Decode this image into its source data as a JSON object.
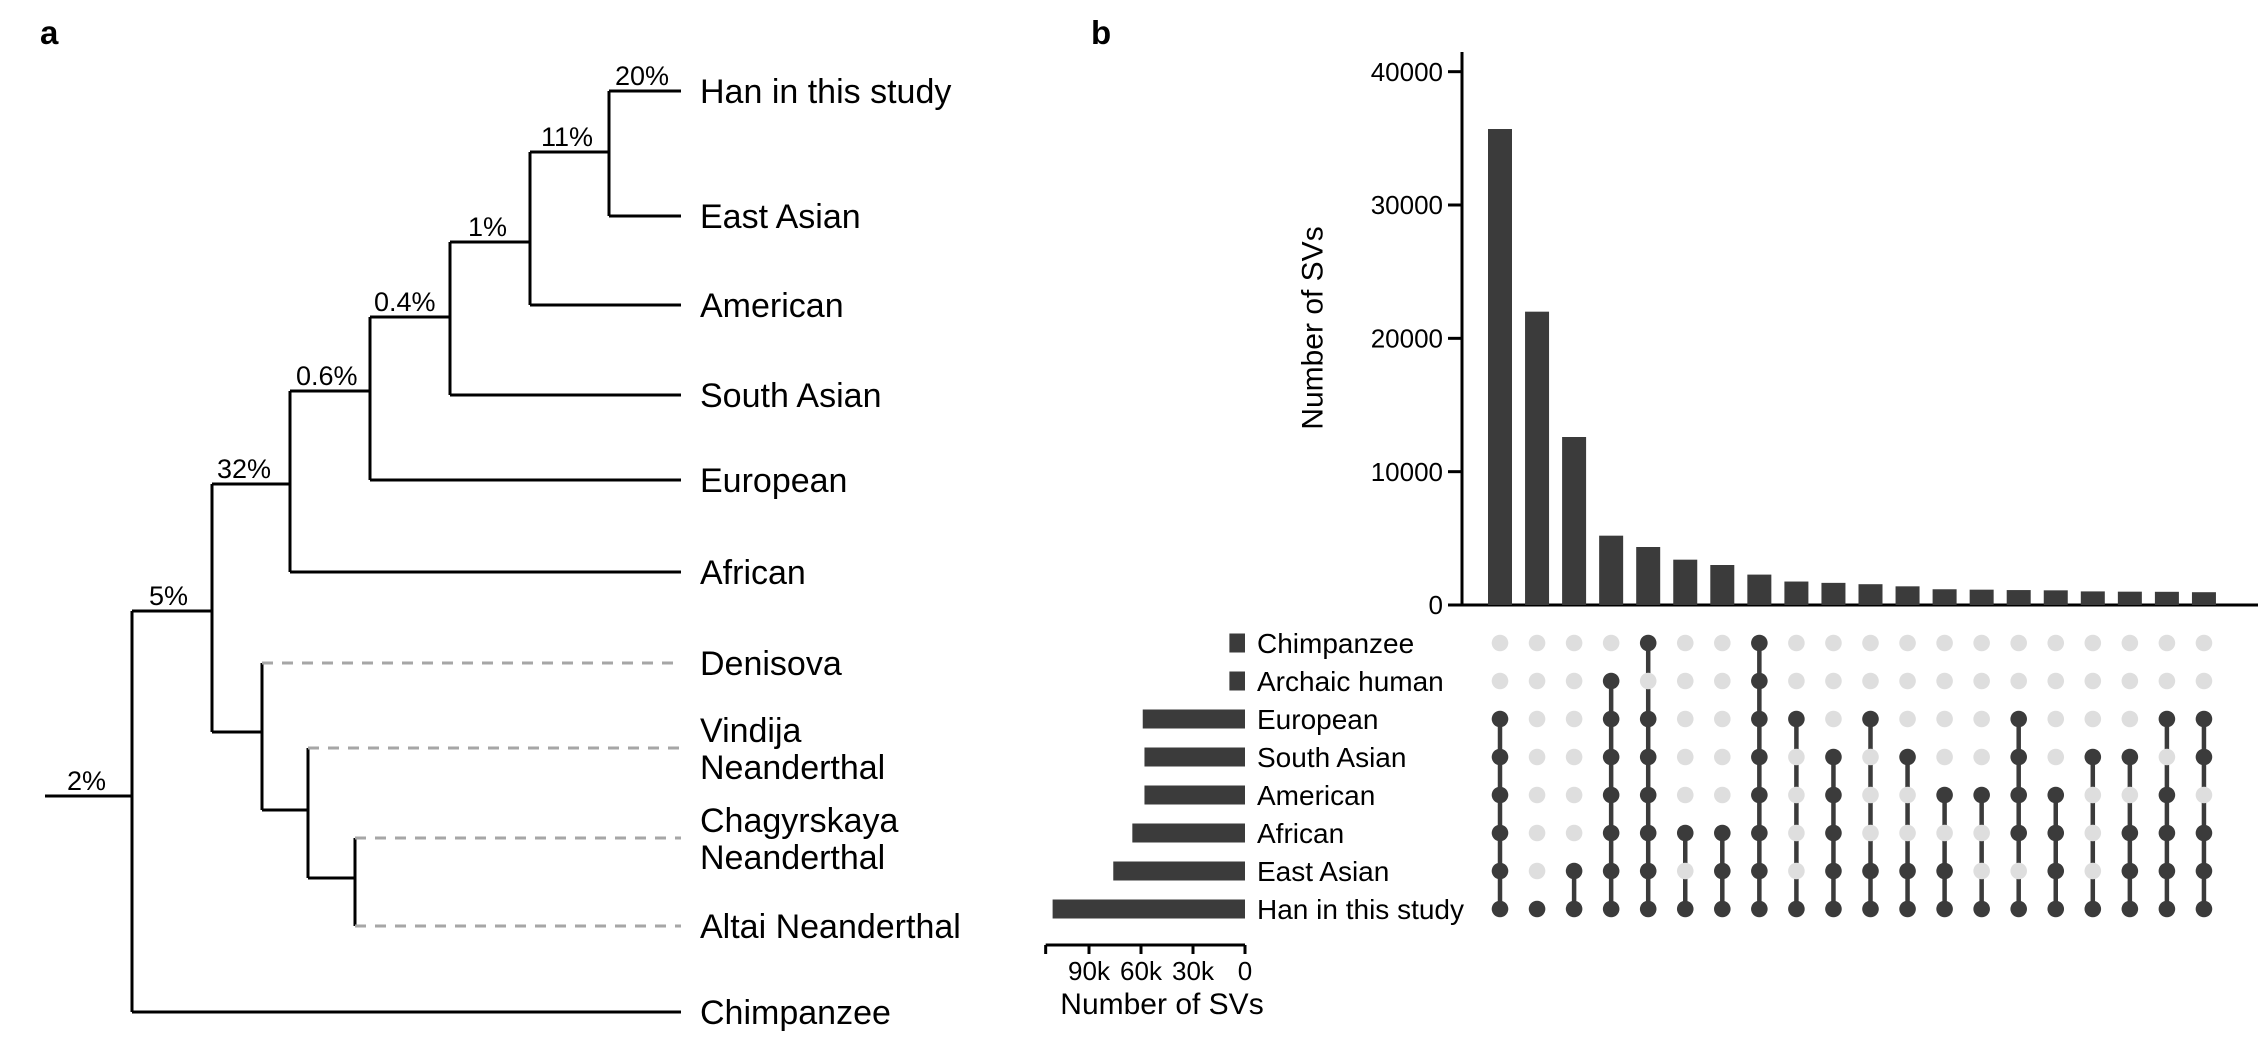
{
  "figure": {
    "background": "#ffffff"
  },
  "chart_data": [
    {
      "id": "panel-a-phylogenetic-tree",
      "type": "tree",
      "panel_label": "a",
      "tips": [
        {
          "name": "Han in this study",
          "lines": [
            "Han in this study"
          ],
          "branch_style": "solid"
        },
        {
          "name": "East Asian",
          "lines": [
            "East Asian"
          ],
          "branch_style": "solid"
        },
        {
          "name": "American",
          "lines": [
            "American"
          ],
          "branch_style": "solid"
        },
        {
          "name": "South Asian",
          "lines": [
            "South Asian"
          ],
          "branch_style": "solid"
        },
        {
          "name": "European",
          "lines": [
            "European"
          ],
          "branch_style": "solid"
        },
        {
          "name": "African",
          "lines": [
            "African"
          ],
          "branch_style": "solid"
        },
        {
          "name": "Denisova",
          "lines": [
            "Denisova"
          ],
          "branch_style": "dashed"
        },
        {
          "name": "Vindija Neanderthal",
          "lines": [
            "Vindija",
            "Neanderthal"
          ],
          "branch_style": "dashed"
        },
        {
          "name": "Chagyrskaya Neanderthal",
          "lines": [
            "Chagyrskaya",
            "Neanderthal"
          ],
          "branch_style": "dashed"
        },
        {
          "name": "Altai Neanderthal",
          "lines": [
            "Altai Neanderthal"
          ],
          "branch_style": "dashed"
        },
        {
          "name": "Chimpanzee",
          "lines": [
            "Chimpanzee"
          ],
          "branch_style": "solid"
        }
      ],
      "branch_percent_labels": [
        "20%",
        "11%",
        "1%",
        "0.4%",
        "0.6%",
        "32%",
        "5%",
        "2%"
      ],
      "colors": {
        "solid_branch": "#000000",
        "dashed_branch": "#a6a6a6",
        "label_text": "#000000"
      }
    },
    {
      "id": "panel-b-upset-plot",
      "type": "bar",
      "panel_label": "b",
      "ylabel": "Number of SVs",
      "yticks": [
        0,
        10000,
        20000,
        30000,
        40000
      ],
      "ylim": [
        0,
        40000
      ],
      "grid": false,
      "sets": [
        {
          "name": "Chimpanzee",
          "size": 9000
        },
        {
          "name": "Archaic human",
          "size": 9000
        },
        {
          "name": "European",
          "size": 59000
        },
        {
          "name": "South Asian",
          "size": 58000
        },
        {
          "name": "American",
          "size": 58000
        },
        {
          "name": "African",
          "size": 65000
        },
        {
          "name": "East Asian",
          "size": 76000
        },
        {
          "name": "Han in this study",
          "size": 111000
        }
      ],
      "set_size_axis": {
        "label": "Number of SVs",
        "tick_labels": [
          "90k",
          "60k",
          "30k",
          "0"
        ],
        "tick_values": [
          90000,
          60000,
          30000,
          0
        ],
        "max": 115000
      },
      "intersections": [
        {
          "sets": [
            "European",
            "South Asian",
            "American",
            "African",
            "East Asian",
            "Han in this study"
          ],
          "value": 35700
        },
        {
          "sets": [
            "Han in this study"
          ],
          "value": 22000
        },
        {
          "sets": [
            "East Asian",
            "Han in this study"
          ],
          "value": 12600
        },
        {
          "sets": [
            "Archaic human",
            "European",
            "South Asian",
            "American",
            "African",
            "East Asian",
            "Han in this study"
          ],
          "value": 5200
        },
        {
          "sets": [
            "Chimpanzee",
            "European",
            "South Asian",
            "American",
            "African",
            "East Asian",
            "Han in this study"
          ],
          "value": 4350
        },
        {
          "sets": [
            "African",
            "Han in this study"
          ],
          "value": 3400
        },
        {
          "sets": [
            "African",
            "East Asian",
            "Han in this study"
          ],
          "value": 3000
        },
        {
          "sets": [
            "Chimpanzee",
            "Archaic human",
            "European",
            "South Asian",
            "American",
            "African",
            "East Asian",
            "Han in this study"
          ],
          "value": 2280
        },
        {
          "sets": [
            "European",
            "Han in this study"
          ],
          "value": 1760
        },
        {
          "sets": [
            "South Asian",
            "American",
            "African",
            "East Asian",
            "Han in this study"
          ],
          "value": 1660
        },
        {
          "sets": [
            "European",
            "East Asian",
            "Han in this study"
          ],
          "value": 1560
        },
        {
          "sets": [
            "South Asian",
            "East Asian",
            "Han in this study"
          ],
          "value": 1400
        },
        {
          "sets": [
            "American",
            "East Asian",
            "Han in this study"
          ],
          "value": 1180
        },
        {
          "sets": [
            "American",
            "Han in this study"
          ],
          "value": 1150
        },
        {
          "sets": [
            "European",
            "South Asian",
            "American",
            "African",
            "Han in this study"
          ],
          "value": 1120
        },
        {
          "sets": [
            "American",
            "African",
            "East Asian",
            "Han in this study"
          ],
          "value": 1100
        },
        {
          "sets": [
            "South Asian",
            "Han in this study"
          ],
          "value": 1020
        },
        {
          "sets": [
            "South Asian",
            "African",
            "East Asian",
            "Han in this study"
          ],
          "value": 1000
        },
        {
          "sets": [
            "European",
            "American",
            "African",
            "East Asian",
            "Han in this study"
          ],
          "value": 990
        },
        {
          "sets": [
            "European",
            "South Asian",
            "African",
            "East Asian",
            "Han in this study"
          ],
          "value": 960
        }
      ],
      "colors": {
        "bar": "#3b3b3b",
        "dot_filled": "#3b3b3b",
        "dot_empty": "#dedede",
        "axis": "#000000"
      }
    }
  ]
}
